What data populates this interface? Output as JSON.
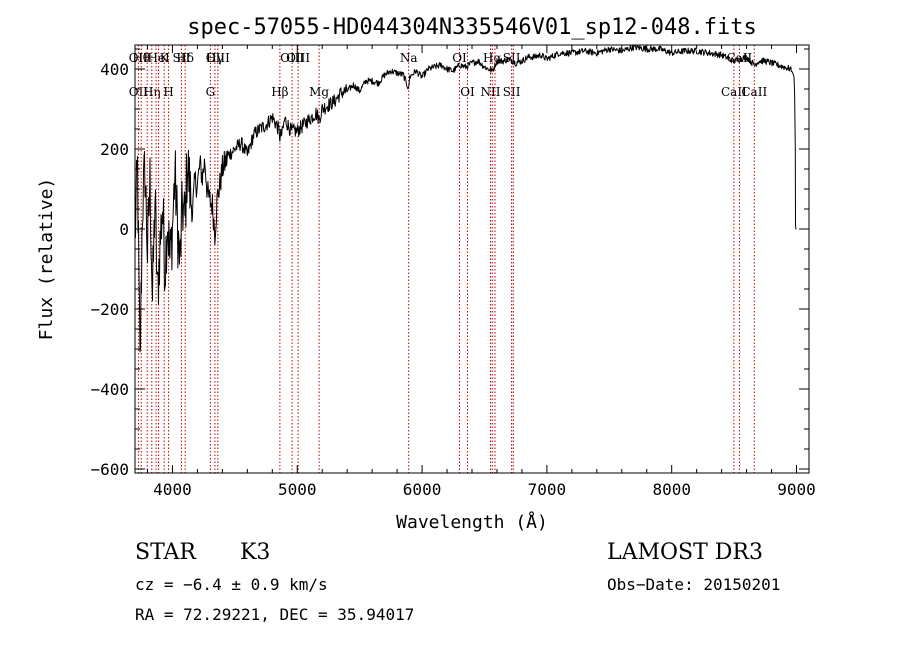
{
  "chart_data": {
    "type": "line",
    "title": "spec-57055-HD044304N335546V01_sp12-048.fits",
    "xlabel": "Wavelength (Å)",
    "ylabel": "Flux (relative)",
    "xlim": [
      3700,
      9100
    ],
    "ylim": [
      -610,
      460
    ],
    "xticks": [
      4000,
      5000,
      6000,
      7000,
      8000,
      9000
    ],
    "yticks": [
      -600,
      -400,
      -200,
      0,
      200,
      400
    ],
    "series": [
      {
        "name": "spectrum",
        "x": [
          3700,
          3720,
          3740,
          3760,
          3780,
          3800,
          3820,
          3840,
          3860,
          3880,
          3900,
          3920,
          3940,
          3960,
          3980,
          4000,
          4020,
          4040,
          4060,
          4080,
          4100,
          4120,
          4140,
          4160,
          4180,
          4200,
          4220,
          4240,
          4260,
          4280,
          4300,
          4320,
          4340,
          4360,
          4380,
          4400,
          4450,
          4500,
          4550,
          4600,
          4650,
          4700,
          4750,
          4800,
          4850,
          4861,
          4880,
          4900,
          4950,
          5000,
          5050,
          5100,
          5150,
          5175,
          5200,
          5250,
          5300,
          5350,
          5400,
          5450,
          5500,
          5550,
          5600,
          5650,
          5700,
          5750,
          5800,
          5850,
          5893,
          5900,
          5950,
          6000,
          6050,
          6100,
          6150,
          6200,
          6250,
          6300,
          6350,
          6400,
          6450,
          6500,
          6563,
          6600,
          6650,
          6700,
          6750,
          6800,
          6850,
          6900,
          6950,
          7000,
          7100,
          7200,
          7300,
          7400,
          7500,
          7600,
          7700,
          7800,
          7900,
          8000,
          8100,
          8200,
          8300,
          8400,
          8498,
          8542,
          8600,
          8662,
          8700,
          8750,
          8800,
          8850,
          8900,
          8950,
          8970,
          8980,
          8985,
          8990,
          8992,
          8995,
          9000
        ],
        "values": [
          -20,
          150,
          -350,
          60,
          150,
          -60,
          120,
          -180,
          80,
          -170,
          -40,
          60,
          -100,
          30,
          -80,
          0,
          140,
          10,
          -90,
          60,
          20,
          170,
          100,
          40,
          120,
          110,
          160,
          130,
          170,
          90,
          70,
          60,
          -10,
          80,
          110,
          150,
          185,
          200,
          215,
          185,
          235,
          250,
          260,
          280,
          250,
          230,
          240,
          275,
          245,
          245,
          260,
          275,
          290,
          275,
          300,
          310,
          320,
          340,
          345,
          360,
          345,
          370,
          370,
          365,
          385,
          395,
          390,
          385,
          350,
          380,
          395,
          380,
          400,
          405,
          410,
          400,
          395,
          410,
          405,
          415,
          420,
          405,
          395,
          420,
          420,
          425,
          415,
          420,
          430,
          430,
          435,
          425,
          440,
          440,
          445,
          440,
          450,
          445,
          455,
          450,
          450,
          440,
          445,
          445,
          440,
          435,
          420,
          425,
          430,
          410,
          420,
          420,
          415,
          410,
          405,
          400,
          390,
          380,
          340,
          200,
          10,
          0,
          0
        ]
      }
    ],
    "lines": [
      {
        "wl": 3727,
        "top": "OII",
        "bot": "OII"
      },
      {
        "wl": 3750,
        "top": "Hθ",
        "bot": ""
      },
      {
        "wl": 3798,
        "top": "",
        "bot": ""
      },
      {
        "wl": 3835,
        "top": "",
        "bot": "Hη"
      },
      {
        "wl": 3869,
        "top": "",
        "bot": ""
      },
      {
        "wl": 3889,
        "top": "HeI",
        "bot": ""
      },
      {
        "wl": 3934,
        "top": "K",
        "bot": ""
      },
      {
        "wl": 3969,
        "top": "",
        "bot": "H"
      },
      {
        "wl": 4072,
        "top": "SII",
        "bot": ""
      },
      {
        "wl": 4102,
        "top": "Hδ",
        "bot": ""
      },
      {
        "wl": 4304,
        "top": "",
        "bot": "G"
      },
      {
        "wl": 4340,
        "top": "Hγ",
        "bot": ""
      },
      {
        "wl": 4363,
        "top": "OIII",
        "bot": ""
      },
      {
        "wl": 4861,
        "top": "",
        "bot": "Hβ"
      },
      {
        "wl": 4959,
        "top": "OIII",
        "bot": ""
      },
      {
        "wl": 5007,
        "top": "OIII",
        "bot": ""
      },
      {
        "wl": 5175,
        "top": "",
        "bot": "Mg"
      },
      {
        "wl": 5893,
        "top": "Na",
        "bot": ""
      },
      {
        "wl": 6300,
        "top": "OI",
        "bot": ""
      },
      {
        "wl": 6364,
        "top": "",
        "bot": "OI"
      },
      {
        "wl": 6548,
        "top": "",
        "bot": "NII"
      },
      {
        "wl": 6563,
        "top": "Hα",
        "bot": ""
      },
      {
        "wl": 6584,
        "top": "",
        "bot": ""
      },
      {
        "wl": 6717,
        "top": "SII",
        "bot": "SII"
      },
      {
        "wl": 6731,
        "top": "",
        "bot": ""
      },
      {
        "wl": 8498,
        "top": "",
        "bot": "CaII"
      },
      {
        "wl": 8542,
        "top": "CaII",
        "bot": ""
      },
      {
        "wl": 8662,
        "top": "",
        "bot": "CaII"
      }
    ]
  },
  "info": {
    "object_class": "STAR",
    "subclass": "K3",
    "survey": "LAMOST DR3",
    "cz": "cz = −6.4 ± 0.9 km/s",
    "obs_date": "Obs−Date: 20150201",
    "coords": "RA =  72.29221, DEC =  35.94017"
  }
}
